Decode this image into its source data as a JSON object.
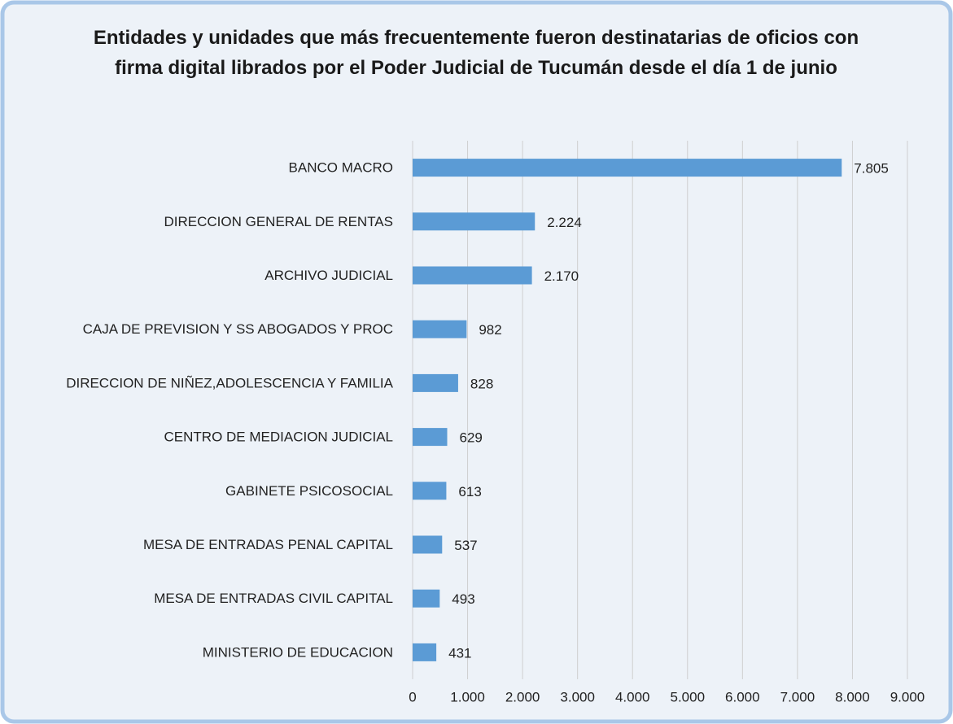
{
  "chart_data": {
    "type": "bar",
    "orientation": "horizontal",
    "title": "Entidades y unidades que más frecuentemente fueron destinatarias de oficios con firma digital librados por el Poder Judicial de Tucumán desde el día 1 de junio",
    "categories": [
      "BANCO MACRO",
      "DIRECCION GENERAL DE RENTAS",
      "ARCHIVO JUDICIAL",
      "CAJA DE PREVISION Y SS ABOGADOS Y PROC",
      "DIRECCION DE NIÑEZ,ADOLESCENCIA Y FAMILIA",
      "CENTRO DE MEDIACION JUDICIAL",
      "GABINETE PSICOSOCIAL",
      "MESA DE ENTRADAS PENAL CAPITAL",
      "MESA DE ENTRADAS CIVIL CAPITAL",
      "MINISTERIO DE EDUCACION"
    ],
    "values": [
      7805,
      2224,
      2170,
      982,
      828,
      629,
      613,
      537,
      493,
      431
    ],
    "value_labels": [
      "7.805",
      "2.224",
      "2.170",
      "982",
      "828",
      "629",
      "613",
      "537",
      "493",
      "431"
    ],
    "color": "#5b9bd5",
    "xlim": [
      0,
      9000
    ],
    "xticks": [
      0,
      {
        "value": 1000,
        "label": "1.000"
      },
      {
        "value": 2000,
        "label": "2.000"
      },
      {
        "value": 3000,
        "label": "3.000"
      },
      {
        "value": 4000,
        "label": "4.000"
      },
      {
        "value": 5000,
        "label": "5.000"
      },
      {
        "value": 6000,
        "label": "6.000"
      },
      {
        "value": 7000,
        "label": "7.000"
      },
      {
        "value": 8000,
        "label": "8.000"
      },
      {
        "value": 9000,
        "label": "9.000"
      }
    ],
    "grid": true
  }
}
